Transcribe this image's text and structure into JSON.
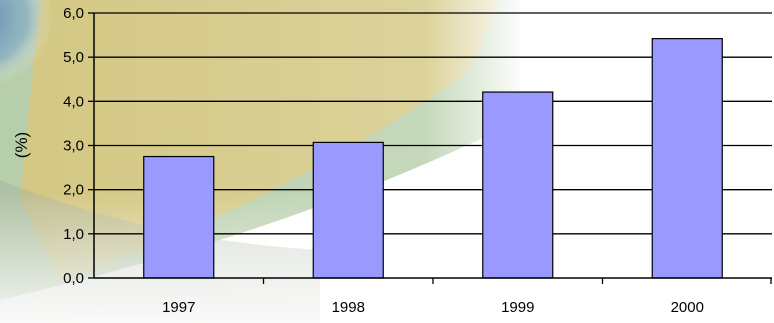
{
  "chart_data": {
    "type": "bar",
    "categories": [
      "1997",
      "1998",
      "1999",
      "2000"
    ],
    "values": [
      2.75,
      3.07,
      4.21,
      5.42
    ],
    "title": "",
    "xlabel": "",
    "ylabel": "(%)",
    "ylim": [
      0,
      6
    ],
    "yticks": [
      "0,0",
      "1,0",
      "2,0",
      "3,0",
      "4,0",
      "5,0",
      "6,0"
    ],
    "grid": true,
    "legend": "none",
    "colors": {
      "bar_fill": "#9999ff",
      "bar_stroke": "#000000",
      "gridline": "#000000",
      "background_blue": "#5b87b8",
      "background_yellow": "#d9c46e",
      "background_green": "#78a060"
    }
  }
}
